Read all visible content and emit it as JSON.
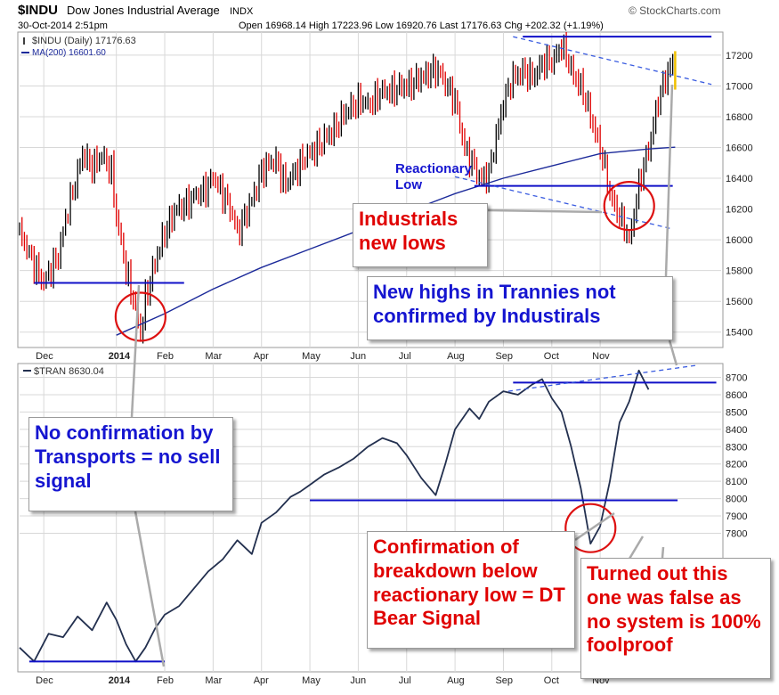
{
  "header": {
    "symbol": "$INDU",
    "name": "Dow Jones Industrial Average",
    "exchange": "INDX",
    "brand": "© StockCharts.com",
    "date": "30-Oct-2014 2:51pm",
    "ohlc": "Open 16968.14  High 17223.96  Low 16920.76  Last 17176.63  Chg +202.32 (+1.19%)",
    "ohlc_up_arrow": "▲"
  },
  "colors": {
    "up_bar": "#000000",
    "down_bar": "#e00000",
    "last_bar": "#f0c000",
    "ma": "#1c2a9a",
    "tran_line": "#23304f",
    "support": "#1010c8",
    "trend_dash": "#3a5ce0",
    "circle": "#dd1111",
    "callout_red": "#e00000",
    "callout_blue": "#1515d0",
    "grid": "#d8d8d8",
    "panel_bg": "#ffffff",
    "frame": "#9a9a9a"
  },
  "chart_data": [
    {
      "type": "line",
      "panel": "top",
      "title": "$INDU Dow Jones Industrial Average INDX",
      "legend": [
        {
          "label": "$INDU (Daily) 17176.63",
          "icon": "bar-icon"
        },
        {
          "label": "MA(200) 16601.60",
          "icon": "line-icon"
        }
      ],
      "x_ticks": [
        "Dec",
        "2014",
        "Feb",
        "Mar",
        "Apr",
        "May",
        "Jun",
        "Jul",
        "Aug",
        "Sep",
        "Oct",
        "Nov"
      ],
      "y_ticks": [
        15400,
        15600,
        15800,
        16000,
        16200,
        16400,
        16600,
        16800,
        17000,
        17200
      ],
      "ylim": [
        15300,
        17350
      ],
      "grid": true,
      "series": [
        {
          "name": "$INDU (Daily)",
          "points_month_index": [
            [
              0,
              16050
            ],
            [
              0.2,
              15900
            ],
            [
              0.5,
              15720
            ],
            [
              0.8,
              15900
            ],
            [
              1.0,
              16200
            ],
            [
              1.3,
              16550
            ],
            [
              1.5,
              16480
            ],
            [
              1.7,
              16540
            ],
            [
              1.9,
              16450
            ],
            [
              2.0,
              16150
            ],
            [
              2.2,
              15800
            ],
            [
              2.4,
              15560
            ],
            [
              2.5,
              15370
            ],
            [
              2.6,
              15620
            ],
            [
              2.8,
              15850
            ],
            [
              3.0,
              16050
            ],
            [
              3.2,
              16180
            ],
            [
              3.5,
              16250
            ],
            [
              3.8,
              16320
            ],
            [
              4.0,
              16400
            ],
            [
              4.3,
              16250
            ],
            [
              4.5,
              16050
            ],
            [
              4.8,
              16250
            ],
            [
              5.0,
              16450
            ],
            [
              5.3,
              16520
            ],
            [
              5.5,
              16350
            ],
            [
              5.8,
              16500
            ],
            [
              6.0,
              16560
            ],
            [
              6.3,
              16650
            ],
            [
              6.5,
              16720
            ],
            [
              6.8,
              16850
            ],
            [
              7.0,
              16900
            ],
            [
              7.2,
              16880
            ],
            [
              7.5,
              16960
            ],
            [
              7.8,
              16980
            ],
            [
              8.0,
              17000
            ],
            [
              8.3,
              17050
            ],
            [
              8.5,
              17100
            ],
            [
              8.7,
              17080
            ],
            [
              9.0,
              16900
            ],
            [
              9.2,
              16600
            ],
            [
              9.5,
              16400
            ],
            [
              9.7,
              16430
            ],
            [
              10.0,
              16900
            ],
            [
              10.2,
              17050
            ],
            [
              10.4,
              17100
            ],
            [
              10.6,
              17050
            ],
            [
              10.8,
              17150
            ],
            [
              11.0,
              17150
            ],
            [
              11.2,
              17270
            ],
            [
              11.4,
              17100
            ],
            [
              11.6,
              17000
            ],
            [
              11.8,
              16800
            ],
            [
              12.0,
              16600
            ],
            [
              12.2,
              16300
            ],
            [
              12.4,
              16150
            ],
            [
              12.6,
              16000
            ],
            [
              12.8,
              16350
            ],
            [
              13.0,
              16600
            ],
            [
              13.2,
              16900
            ],
            [
              13.4,
              17100
            ],
            [
              13.55,
              17176
            ]
          ]
        },
        {
          "name": "MA(200)",
          "points_month_index": [
            [
              2.0,
              15380
            ],
            [
              3.0,
              15520
            ],
            [
              4.0,
              15680
            ],
            [
              5.0,
              15820
            ],
            [
              6.0,
              15940
            ],
            [
              7.0,
              16060
            ],
            [
              8.0,
              16180
            ],
            [
              9.0,
              16300
            ],
            [
              10.0,
              16400
            ],
            [
              11.0,
              16480
            ],
            [
              12.0,
              16560
            ],
            [
              13.0,
              16590
            ],
            [
              13.55,
              16602
            ]
          ]
        }
      ],
      "annotations": [
        {
          "kind": "hline",
          "y": 15720,
          "x_from": 0.3,
          "x_to": 3.4
        },
        {
          "kind": "hline",
          "y": 16350,
          "x_from": 9.4,
          "x_to": 13.5
        },
        {
          "kind": "hline",
          "y": 17320,
          "x_from": 10.4,
          "x_to": 14.3
        },
        {
          "kind": "dashed",
          "x1": 10.2,
          "y1": 17320,
          "x2": 14.3,
          "y2": 17010
        },
        {
          "kind": "dashed",
          "x1": 9.0,
          "y1": 16410,
          "x2": 13.5,
          "y2": 16070
        },
        {
          "kind": "circle",
          "x": 2.5,
          "y": 15500
        },
        {
          "kind": "circle",
          "x": 12.6,
          "y": 16220
        }
      ],
      "labels": [
        {
          "text": "Reactionary",
          "x": 9.1,
          "y": 16620
        },
        {
          "text": "Low",
          "x": 9.1,
          "y": 16440
        }
      ]
    },
    {
      "type": "line",
      "panel": "bottom",
      "legend": [
        {
          "label": "$TRAN 8630.04",
          "icon": "line-icon"
        }
      ],
      "x_ticks": [
        "Dec",
        "2014",
        "Feb",
        "Mar",
        "Apr",
        "May",
        "Jun",
        "Jul",
        "Aug",
        "Sep",
        "Oct",
        "Nov"
      ],
      "y_ticks": [
        7800,
        7900,
        8000,
        8100,
        8200,
        8300,
        8400,
        8500,
        8600,
        8700
      ],
      "ylim": [
        7000,
        8780
      ],
      "grid": true,
      "series": [
        {
          "name": "$TRAN",
          "points_month_index": [
            [
              0,
              7140
            ],
            [
              0.3,
              7060
            ],
            [
              0.6,
              7220
            ],
            [
              0.9,
              7200
            ],
            [
              1.2,
              7320
            ],
            [
              1.5,
              7240
            ],
            [
              1.8,
              7400
            ],
            [
              2.0,
              7300
            ],
            [
              2.2,
              7160
            ],
            [
              2.4,
              7060
            ],
            [
              2.6,
              7140
            ],
            [
              2.8,
              7250
            ],
            [
              3.0,
              7330
            ],
            [
              3.3,
              7380
            ],
            [
              3.6,
              7480
            ],
            [
              3.9,
              7580
            ],
            [
              4.2,
              7650
            ],
            [
              4.5,
              7760
            ],
            [
              4.8,
              7680
            ],
            [
              5.0,
              7860
            ],
            [
              5.3,
              7920
            ],
            [
              5.6,
              8010
            ],
            [
              5.8,
              8040
            ],
            [
              6.0,
              8080
            ],
            [
              6.3,
              8140
            ],
            [
              6.6,
              8180
            ],
            [
              6.9,
              8230
            ],
            [
              7.2,
              8300
            ],
            [
              7.5,
              8350
            ],
            [
              7.8,
              8320
            ],
            [
              8.0,
              8250
            ],
            [
              8.3,
              8120
            ],
            [
              8.6,
              8020
            ],
            [
              8.8,
              8200
            ],
            [
              9.0,
              8400
            ],
            [
              9.3,
              8520
            ],
            [
              9.5,
              8460
            ],
            [
              9.7,
              8560
            ],
            [
              10.0,
              8620
            ],
            [
              10.3,
              8600
            ],
            [
              10.6,
              8660
            ],
            [
              10.8,
              8690
            ],
            [
              11.0,
              8580
            ],
            [
              11.2,
              8500
            ],
            [
              11.4,
              8300
            ],
            [
              11.6,
              8060
            ],
            [
              11.8,
              7740
            ],
            [
              12.0,
              7840
            ],
            [
              12.2,
              8100
            ],
            [
              12.4,
              8440
            ],
            [
              12.6,
              8560
            ],
            [
              12.8,
              8740
            ],
            [
              13.0,
              8630
            ]
          ]
        }
      ],
      "annotations": [
        {
          "kind": "hline",
          "y": 7060,
          "x_from": 0.2,
          "x_to": 3.0
        },
        {
          "kind": "hline",
          "y": 7990,
          "x_from": 6.0,
          "x_to": 13.6
        },
        {
          "kind": "hline",
          "y": 8670,
          "x_from": 10.2,
          "x_to": 14.4
        },
        {
          "kind": "dashed",
          "x1": 10.1,
          "y1": 8620,
          "x2": 14.0,
          "y2": 8770
        },
        {
          "kind": "circle",
          "x": 11.8,
          "y": 7830
        }
      ]
    }
  ],
  "callouts": {
    "industrials_new_lows": "Industrials new lows",
    "new_highs_trannies": "New highs in Trannies not confirmed by Industirals",
    "no_confirmation": "No confirmation by Transports = no sell signal",
    "confirmation_breakdown": "Confirmation of breakdown below reactionary low = DT Bear Signal",
    "turned_out_false": "Turned out this one was false as no system is 100% foolproof"
  }
}
